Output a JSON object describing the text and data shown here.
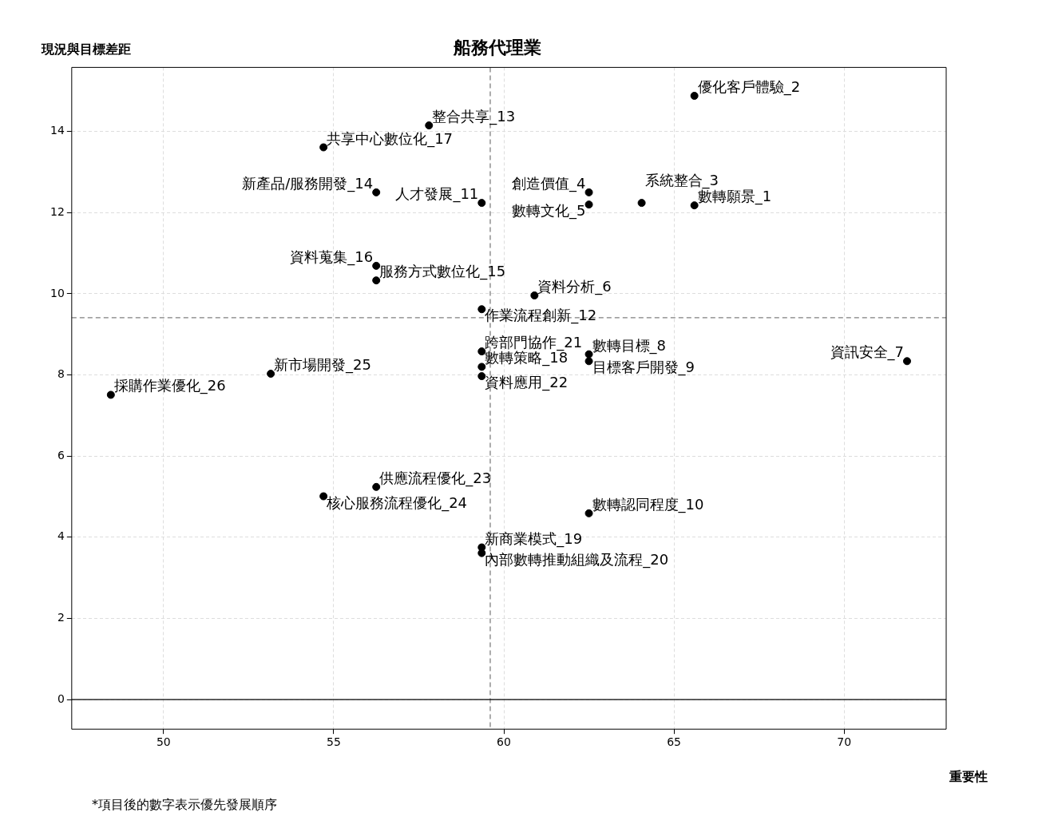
{
  "chart_data": {
    "type": "scatter",
    "title": "船務代理業",
    "xlabel": "重要性",
    "ylabel": "現況與目標差距",
    "x": [
      65.6,
      65.6,
      64.05,
      62.5,
      62.5,
      60.9,
      71.85,
      62.5,
      62.5,
      62.5,
      59.35,
      59.35,
      57.8,
      56.25,
      56.25,
      56.25,
      54.7,
      59.35,
      59.35,
      59.35,
      59.35,
      59.35,
      56.25,
      54.7,
      53.15,
      48.45
    ],
    "series": [
      {
        "color": "#000000",
        "values": [
          12.18,
          14.88,
          12.24,
          12.5,
          12.2,
          9.96,
          8.34,
          8.51,
          8.34,
          4.59,
          12.24,
          9.62,
          14.15,
          12.5,
          10.33,
          10.69,
          13.61,
          8.2,
          3.75,
          3.61,
          8.58,
          7.97,
          5.24,
          5.01,
          8.03,
          7.51
        ]
      }
    ],
    "annotations": [
      {
        "text": "數轉願景_1",
        "x": 65.6,
        "y": 12.18
      },
      {
        "text": "優化客戶體驗_2",
        "x": 65.6,
        "y": 14.88
      },
      {
        "text": "系統整合_3",
        "x": 64.05,
        "y": 12.24
      },
      {
        "text": "創造價值_4",
        "x": 62.5,
        "y": 12.5
      },
      {
        "text": "數轉文化_5",
        "x": 62.5,
        "y": 12.2
      },
      {
        "text": "資料分析_6",
        "x": 60.9,
        "y": 9.96
      },
      {
        "text": "資訊安全_7",
        "x": 71.85,
        "y": 8.34
      },
      {
        "text": "數轉目標_8",
        "x": 62.5,
        "y": 8.51
      },
      {
        "text": "目標客戶開發_9",
        "x": 62.5,
        "y": 8.34
      },
      {
        "text": "數轉認同程度_10",
        "x": 62.5,
        "y": 4.59
      },
      {
        "text": "人才發展_11",
        "x": 59.35,
        "y": 12.24
      },
      {
        "text": "作業流程創新_12",
        "x": 59.35,
        "y": 9.62
      },
      {
        "text": "整合共享_13",
        "x": 57.8,
        "y": 14.15
      },
      {
        "text": "新產品/服務開發_14",
        "x": 56.25,
        "y": 12.5
      },
      {
        "text": "服務方式數位化_15",
        "x": 56.25,
        "y": 10.33
      },
      {
        "text": "資料蒐集_16",
        "x": 56.25,
        "y": 10.69
      },
      {
        "text": "共享中心數位化_17",
        "x": 54.7,
        "y": 13.61
      },
      {
        "text": "數轉策略_18",
        "x": 59.35,
        "y": 8.2
      },
      {
        "text": "新商業模式_19",
        "x": 59.35,
        "y": 3.75
      },
      {
        "text": "內部數轉推動組織及流程_20",
        "x": 59.35,
        "y": 3.61
      },
      {
        "text": "跨部門協作_21",
        "x": 59.35,
        "y": 8.58
      },
      {
        "text": "資料應用_22",
        "x": 59.35,
        "y": 7.97
      },
      {
        "text": "供應流程優化_23",
        "x": 56.25,
        "y": 5.24
      },
      {
        "text": "核心服務流程優化_24",
        "x": 54.7,
        "y": 5.01
      },
      {
        "text": "新市場開發_25",
        "x": 53.15,
        "y": 8.03
      },
      {
        "text": "採購作業優化_26",
        "x": 48.45,
        "y": 7.51
      },
      "*項目後的數字表示優先發展順序"
    ],
    "ref_lines": [
      {
        "axis": "x",
        "value": 59.6,
        "color": "#808080",
        "line_style": "dashed"
      },
      {
        "axis": "y",
        "value": 9.41,
        "color": "#808080",
        "line_style": "dashed"
      },
      {
        "axis": "y",
        "value": 0,
        "color": "#000000",
        "line_style": "solid"
      }
    ],
    "xlim": [
      47.3,
      73.0
    ],
    "ylim": [
      -0.73,
      15.58
    ],
    "xticks": [
      50,
      55,
      60,
      65,
      70
    ],
    "yticks": [
      0,
      2,
      4,
      6,
      8,
      10,
      12,
      14
    ],
    "grid": true,
    "legend": false,
    "marker": "circle"
  }
}
